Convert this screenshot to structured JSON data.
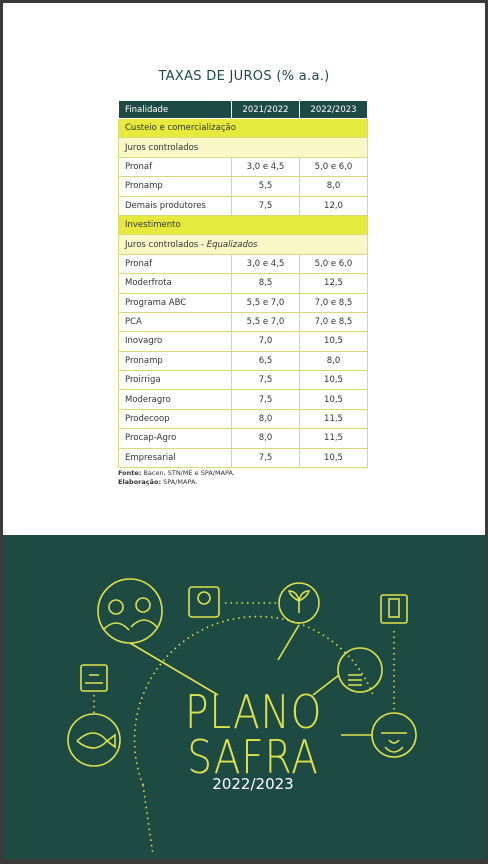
{
  "title": "TAXAS DE JUROS (% a.a.)",
  "table": {
    "header": [
      "Finalidade",
      "2021/2022",
      "2022/2023"
    ],
    "sections": [
      {
        "title": "Custeio e comercialização",
        "groups": [
          {
            "title": "Juros controlados",
            "title_italic": null,
            "rows": [
              [
                "Pronaf",
                "3,0 e 4,5",
                "5,0 e 6,0"
              ],
              [
                "Pronamp",
                "5,5",
                "8,0"
              ],
              [
                "Demais produtores",
                "7,5",
                "12,0"
              ]
            ]
          }
        ]
      },
      {
        "title": "Investimento",
        "groups": [
          {
            "title": "Juros controlados - ",
            "title_italic": "Equalizados",
            "rows": [
              [
                "Pronaf",
                "3,0 e 4,5",
                "5,0 e 6,0"
              ],
              [
                "Moderfrota",
                "8,5",
                "12,5"
              ],
              [
                "Programa ABC",
                "5,5 e 7,0",
                "7,0 e 8,5"
              ],
              [
                "PCA",
                "5,5 e 7,0",
                "7,0 e 8,5"
              ],
              [
                "Inovagro",
                "7,0",
                "10,5"
              ],
              [
                "Pronamp",
                "6,5",
                "8,0"
              ],
              [
                "Proirriga",
                "7,5",
                "10,5"
              ],
              [
                "Moderagro",
                "7,5",
                "10,5"
              ],
              [
                "Prodecoop",
                "8,0",
                "11,5"
              ],
              [
                "Procap-Agro",
                "8,0",
                "11,5"
              ],
              [
                "Empresarial",
                "7,5",
                "10,5"
              ]
            ]
          }
        ]
      }
    ]
  },
  "notes": [
    {
      "label": "Fonte:",
      "text": " Bacen, STN/ME e SPA/MAPA."
    },
    {
      "label": "Elaboração:",
      "text": " SPA/MAPA."
    }
  ],
  "cover": {
    "line1": "PLANO",
    "line2": "SAFRA",
    "year": "2022/2023"
  }
}
